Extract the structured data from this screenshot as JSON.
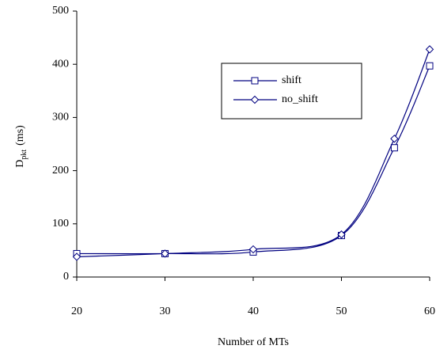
{
  "chart_data": {
    "type": "line",
    "x_label": "Number of MTs",
    "y_label": {
      "main": "D",
      "subscript": "pkt",
      "unit": "(ms)"
    },
    "x": [
      20,
      30,
      40,
      50,
      56,
      60
    ],
    "series": [
      {
        "name": "shift",
        "color": "#000080",
        "marker": "square",
        "values": [
          44,
          44,
          47,
          78,
          243,
          397
        ]
      },
      {
        "name": "no_shift",
        "color": "#000080",
        "marker": "diamond",
        "values": [
          38,
          44,
          52,
          80,
          260,
          428
        ]
      }
    ],
    "xlim": [
      20,
      60
    ],
    "xticks": [
      20,
      30,
      40,
      50,
      60
    ],
    "ylim": [
      0,
      500
    ],
    "yticks": [
      0,
      100,
      200,
      300,
      400,
      500
    ],
    "grid": false,
    "legend": "upper right"
  }
}
